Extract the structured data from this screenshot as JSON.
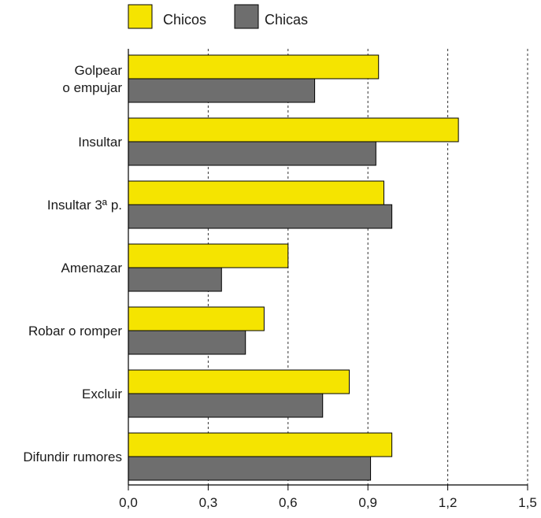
{
  "chart_data": {
    "type": "bar",
    "orientation": "horizontal",
    "categories": [
      [
        "Golpear",
        "o empujar"
      ],
      [
        "Insultar"
      ],
      [
        "Insultar 3ª p."
      ],
      [
        "Amenazar"
      ],
      [
        "Robar o romper"
      ],
      [
        "Excluir"
      ],
      [
        "Difundir rumores"
      ]
    ],
    "series": [
      {
        "name": "Chicos",
        "color": "#f5e400",
        "values": [
          0.94,
          1.24,
          0.96,
          0.6,
          0.51,
          0.83,
          0.99
        ]
      },
      {
        "name": "Chicas",
        "color": "#6e6e6e",
        "values": [
          0.7,
          0.93,
          0.99,
          0.35,
          0.44,
          0.73,
          0.91
        ]
      }
    ],
    "xlim": [
      0,
      1.5
    ],
    "xticks": [
      "0,0",
      "0,3",
      "0,6",
      "0,9",
      "1,2",
      "1,5"
    ],
    "grid": "vertical dashed",
    "legend_position": "top"
  }
}
